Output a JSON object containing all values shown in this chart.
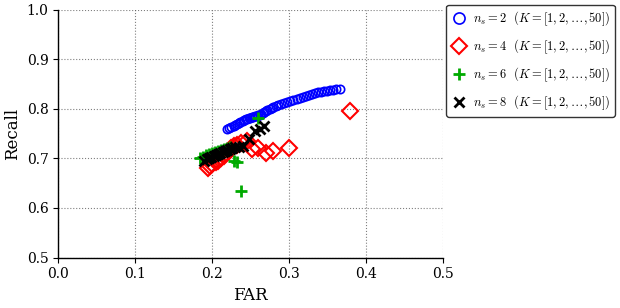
{
  "title": "",
  "xlabel": "FAR",
  "ylabel": "Recall",
  "xlim": [
    0,
    0.5
  ],
  "ylim": [
    0.5,
    1.0
  ],
  "xticks": [
    0,
    0.1,
    0.2,
    0.3,
    0.4,
    0.5
  ],
  "yticks": [
    0.5,
    0.6,
    0.7,
    0.8,
    0.9,
    1.0
  ],
  "legend_labels": [
    "$n_s = 2$  $(K = [1, 2, \\ldots, 50])$",
    "$n_s = 4$  $(K = [1, 2, \\ldots, 50])$",
    "$n_s = 6$  $(K = [1, 2, \\ldots, 50])$",
    "$n_s = 8$  $(K = [1, 2, \\ldots, 50])$"
  ],
  "ns2_far": [
    0.22,
    0.222,
    0.225,
    0.228,
    0.23,
    0.232,
    0.235,
    0.237,
    0.24,
    0.242,
    0.244,
    0.246,
    0.248,
    0.25,
    0.252,
    0.254,
    0.256,
    0.258,
    0.26,
    0.262,
    0.264,
    0.266,
    0.268,
    0.27,
    0.272,
    0.275,
    0.278,
    0.28,
    0.283,
    0.286,
    0.29,
    0.294,
    0.298,
    0.302,
    0.306,
    0.31,
    0.314,
    0.318,
    0.322,
    0.326,
    0.33,
    0.334,
    0.338,
    0.342,
    0.346,
    0.35,
    0.354,
    0.358,
    0.362,
    0.366
  ],
  "ns2_recall": [
    0.76,
    0.762,
    0.764,
    0.766,
    0.768,
    0.77,
    0.772,
    0.774,
    0.776,
    0.778,
    0.779,
    0.78,
    0.781,
    0.782,
    0.783,
    0.784,
    0.785,
    0.786,
    0.787,
    0.788,
    0.79,
    0.792,
    0.794,
    0.796,
    0.798,
    0.8,
    0.802,
    0.804,
    0.806,
    0.808,
    0.81,
    0.812,
    0.814,
    0.816,
    0.818,
    0.82,
    0.822,
    0.824,
    0.826,
    0.828,
    0.83,
    0.832,
    0.833,
    0.834,
    0.835,
    0.836,
    0.837,
    0.838,
    0.839,
    0.84
  ],
  "ns4_far": [
    0.195,
    0.198,
    0.2,
    0.205,
    0.208,
    0.212,
    0.215,
    0.218,
    0.222,
    0.225,
    0.228,
    0.232,
    0.238,
    0.245,
    0.252,
    0.26,
    0.27,
    0.28,
    0.3,
    0.38
  ],
  "ns4_recall": [
    0.68,
    0.685,
    0.688,
    0.692,
    0.695,
    0.7,
    0.705,
    0.71,
    0.715,
    0.72,
    0.725,
    0.728,
    0.732,
    0.735,
    0.718,
    0.72,
    0.71,
    0.715,
    0.72,
    0.795
  ],
  "ns6_far": [
    0.185,
    0.188,
    0.192,
    0.196,
    0.2,
    0.204,
    0.208,
    0.212,
    0.216,
    0.22,
    0.224,
    0.228,
    0.232,
    0.238,
    0.26
  ],
  "ns6_recall": [
    0.7,
    0.703,
    0.706,
    0.708,
    0.71,
    0.712,
    0.714,
    0.716,
    0.718,
    0.72,
    0.722,
    0.695,
    0.693,
    0.635,
    0.782
  ],
  "ns8_far": [
    0.19,
    0.193,
    0.196,
    0.199,
    0.202,
    0.205,
    0.208,
    0.211,
    0.214,
    0.217,
    0.22,
    0.223,
    0.226,
    0.23,
    0.235,
    0.24,
    0.248,
    0.256,
    0.262,
    0.268
  ],
  "ns8_recall": [
    0.695,
    0.698,
    0.7,
    0.702,
    0.704,
    0.706,
    0.708,
    0.71,
    0.712,
    0.714,
    0.716,
    0.718,
    0.72,
    0.722,
    0.724,
    0.726,
    0.74,
    0.755,
    0.76,
    0.765
  ]
}
